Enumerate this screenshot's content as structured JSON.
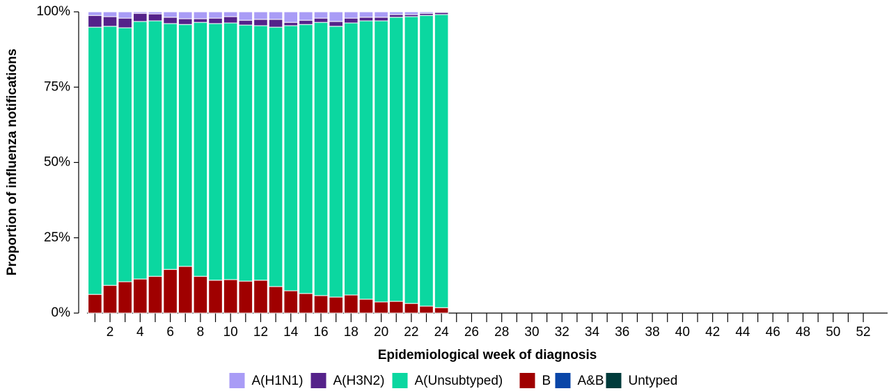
{
  "chart_data": {
    "type": "stacked_bar_percent",
    "x_label": "Epidemiological week of diagnosis",
    "y_label": "Proportion of influenza notifications",
    "categories": [
      null,
      "2",
      null,
      "4",
      null,
      "6",
      null,
      "8",
      null,
      "10",
      null,
      "12",
      null,
      "14",
      null,
      "16",
      null,
      "18",
      null,
      "20",
      null,
      "22",
      null,
      "24",
      null,
      "26",
      null,
      "28",
      null,
      "30",
      null,
      "32",
      null,
      "34",
      null,
      "36",
      null,
      "38",
      null,
      "40",
      null,
      "42",
      null,
      "44",
      null,
      "46",
      null,
      "48",
      null,
      "50",
      null,
      "52"
    ],
    "ylim": [
      0,
      100
    ],
    "yticks": [
      {
        "value": 0,
        "label": "0%"
      },
      {
        "value": 25,
        "label": "25%"
      },
      {
        "value": 50,
        "label": "50%"
      },
      {
        "value": 75,
        "label": "75%"
      },
      {
        "value": 100,
        "label": "100%"
      }
    ],
    "series": [
      {
        "name": "A(H1N1)",
        "color": "#a99cf6",
        "values": [
          1.2,
          1.6,
          2.1,
          0.5,
          0.7,
          1.8,
          2.3,
          2.3,
          2.1,
          1.6,
          2.8,
          2.5,
          2.5,
          3.5,
          2.8,
          2.1,
          3.2,
          2.1,
          1.8,
          1.8,
          0.9,
          0.9,
          0.5,
          0.2,
          null,
          null,
          null,
          null,
          null,
          null,
          null,
          null,
          null,
          null,
          null,
          null,
          null,
          null,
          null,
          null,
          null,
          null,
          null,
          null,
          null,
          null,
          null,
          null,
          null,
          null,
          null,
          null
        ]
      },
      {
        "name": "A(H3N2)",
        "color": "#55228a",
        "values": [
          3.9,
          3.2,
          3.2,
          2.7,
          2.3,
          2.1,
          1.9,
          1.2,
          1.8,
          2.1,
          1.6,
          2.1,
          2.6,
          1.1,
          1.4,
          1.4,
          1.6,
          1.6,
          1.2,
          1.2,
          0.9,
          0.7,
          0.7,
          0.7,
          null,
          null,
          null,
          null,
          null,
          null,
          null,
          null,
          null,
          null,
          null,
          null,
          null,
          null,
          null,
          null,
          null,
          null,
          null,
          null,
          null,
          null,
          null,
          null,
          null,
          null,
          null,
          null
        ]
      },
      {
        "name": "A(Unsubtyped)",
        "color": "#0bd7a0",
        "values": [
          88.7,
          86.0,
          84.3,
          85.5,
          84.8,
          81.6,
          80.3,
          84.3,
          85.2,
          85.2,
          85.0,
          84.5,
          86.1,
          88.0,
          89.3,
          90.7,
          89.9,
          90.3,
          92.4,
          93.3,
          94.3,
          95.2,
          96.5,
          97.3,
          null,
          null,
          null,
          null,
          null,
          null,
          null,
          null,
          null,
          null,
          null,
          null,
          null,
          null,
          null,
          null,
          null,
          null,
          null,
          null,
          null,
          null,
          null,
          null,
          null,
          null,
          null,
          null
        ]
      },
      {
        "name": "B",
        "color": "#a00000",
        "values": [
          6.2,
          9.2,
          10.4,
          11.3,
          12.2,
          14.5,
          15.5,
          12.2,
          10.9,
          11.1,
          10.6,
          10.9,
          8.8,
          7.4,
          6.5,
          5.8,
          5.3,
          6.0,
          4.6,
          3.7,
          3.9,
          3.2,
          2.3,
          1.8,
          null,
          null,
          null,
          null,
          null,
          null,
          null,
          null,
          null,
          null,
          null,
          null,
          null,
          null,
          null,
          null,
          null,
          null,
          null,
          null,
          null,
          null,
          null,
          null,
          null,
          null,
          null,
          null
        ]
      },
      {
        "name": "A&B",
        "color": "#0a46a8",
        "values": [
          0,
          0,
          0,
          0,
          0,
          0,
          0,
          0,
          0,
          0,
          0,
          0,
          0,
          0,
          0,
          0,
          0,
          0,
          0,
          0,
          0,
          0,
          0,
          0,
          null,
          null,
          null,
          null,
          null,
          null,
          null,
          null,
          null,
          null,
          null,
          null,
          null,
          null,
          null,
          null,
          null,
          null,
          null,
          null,
          null,
          null,
          null,
          null,
          null,
          null,
          null,
          null
        ]
      },
      {
        "name": "Untyped",
        "color": "#003b3b",
        "values": [
          0,
          0,
          0,
          0,
          0,
          0,
          0,
          0,
          0,
          0,
          0,
          0,
          0,
          0,
          0,
          0,
          0,
          0,
          0,
          0,
          0,
          0,
          0,
          0,
          null,
          null,
          null,
          null,
          null,
          null,
          null,
          null,
          null,
          null,
          null,
          null,
          null,
          null,
          null,
          null,
          null,
          null,
          null,
          null,
          null,
          null,
          null,
          null,
          null,
          null,
          null,
          null
        ]
      }
    ]
  }
}
